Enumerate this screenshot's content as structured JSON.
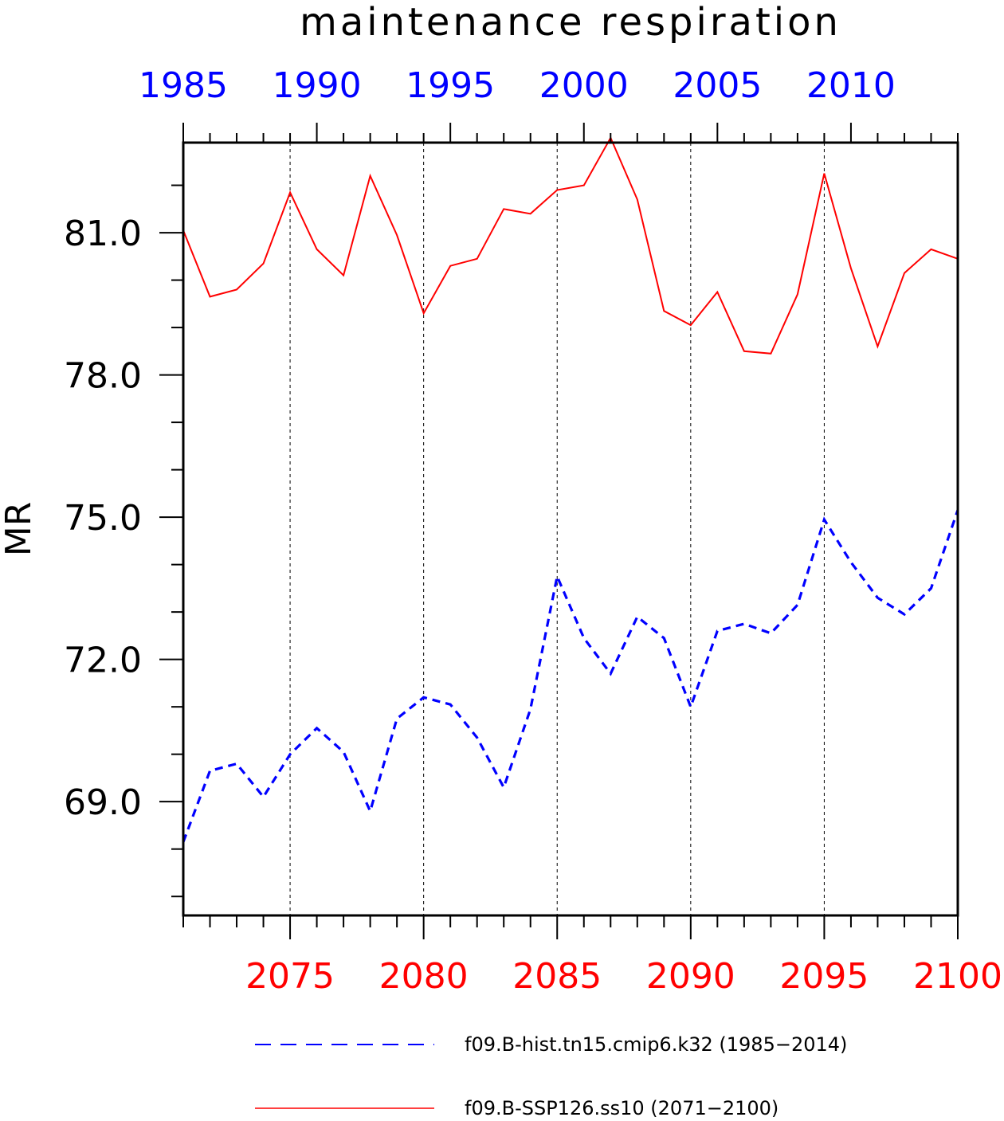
{
  "chart_data": {
    "type": "line",
    "title": "maintenance respiration",
    "ylabel": "MR",
    "ylim": [
      66.6,
      82.9
    ],
    "yticks": [
      69.0,
      72.0,
      75.0,
      78.0,
      81.0
    ],
    "ytick_labels": [
      "69.0",
      "72.0",
      "75.0",
      "78.0",
      "81.0"
    ],
    "ytick_minor_step": 1.0,
    "bottom_axis": {
      "color": "#ff0000",
      "range": [
        2071,
        2100
      ],
      "ticks": [
        2075,
        2080,
        2085,
        2090,
        2095,
        2100
      ],
      "tick_labels": [
        "2075",
        "2080",
        "2085",
        "2090",
        "2095",
        "2100"
      ]
    },
    "top_axis": {
      "color": "#0000ff",
      "range": [
        1985,
        2014
      ],
      "ticks": [
        1985,
        1990,
        1995,
        2000,
        2005,
        2010
      ],
      "tick_labels": [
        "1985",
        "1990",
        "1995",
        "2000",
        "2005",
        "2010"
      ]
    },
    "vertical_gridlines_at": [
      2075,
      2080,
      2085,
      2090,
      2095
    ],
    "grid": "vertical dashed",
    "legend_position": "bottom",
    "series": [
      {
        "name": "f09.B-hist.tn15.cmip6.k32 (1985−2014)",
        "axis": "top",
        "color": "#0000ff",
        "style": "dashed",
        "x": [
          1985,
          1986,
          1987,
          1988,
          1989,
          1990,
          1991,
          1992,
          1993,
          1994,
          1995,
          1996,
          1997,
          1998,
          1999,
          2000,
          2001,
          2002,
          2003,
          2004,
          2005,
          2006,
          2007,
          2008,
          2009,
          2010,
          2011,
          2012,
          2013,
          2014
        ],
        "values": [
          68.15,
          69.65,
          69.8,
          69.1,
          70.0,
          70.55,
          70.05,
          68.8,
          70.75,
          71.2,
          71.05,
          70.35,
          69.3,
          70.95,
          73.75,
          72.45,
          71.7,
          72.9,
          72.45,
          71.0,
          72.6,
          72.75,
          72.55,
          73.15,
          74.95,
          74.05,
          73.3,
          72.95,
          73.5,
          75.15
        ]
      },
      {
        "name": "f09.B-SSP126.ss10 (2071−2100)",
        "axis": "bottom",
        "color": "#ff0000",
        "style": "solid",
        "x": [
          2071,
          2072,
          2073,
          2074,
          2075,
          2076,
          2077,
          2078,
          2079,
          2080,
          2081,
          2082,
          2083,
          2084,
          2085,
          2086,
          2087,
          2088,
          2089,
          2090,
          2091,
          2092,
          2093,
          2094,
          2095,
          2096,
          2097,
          2098,
          2099,
          2100
        ],
        "values": [
          81.05,
          79.65,
          79.8,
          80.35,
          81.85,
          80.65,
          80.1,
          82.2,
          80.95,
          79.3,
          80.3,
          80.45,
          81.5,
          81.4,
          81.9,
          82.0,
          83.0,
          81.7,
          79.35,
          79.05,
          79.75,
          78.5,
          78.45,
          79.7,
          82.25,
          80.25,
          78.6,
          80.15,
          80.65,
          80.45
        ]
      }
    ]
  }
}
